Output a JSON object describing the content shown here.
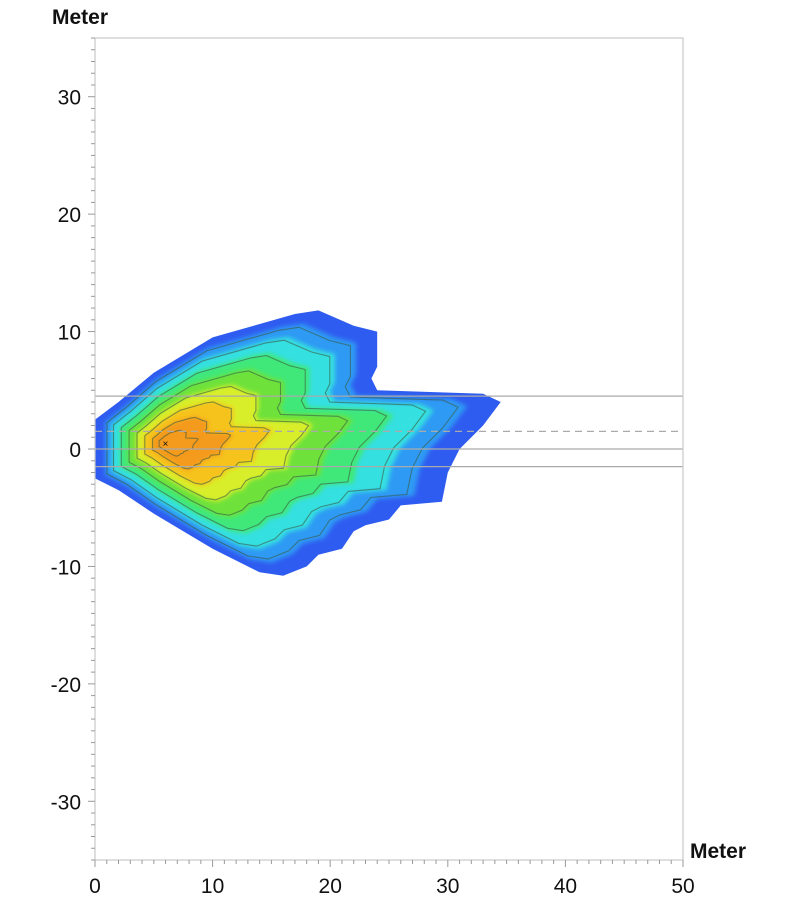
{
  "chart_data": {
    "type": "heatmap",
    "title": "",
    "xlabel": "Meter",
    "ylabel": "Meter",
    "xlim": [
      0,
      50
    ],
    "ylim": [
      -35,
      35
    ],
    "xticks": [
      0,
      10,
      20,
      30,
      40,
      50
    ],
    "yticks": [
      30,
      20,
      10,
      0,
      -10,
      -20,
      -30
    ],
    "grid": false,
    "colormap": [
      "#2f5cf0",
      "#2f9af4",
      "#35e0e0",
      "#3fe87a",
      "#6ee23a",
      "#d9ee2a",
      "#f6c21c",
      "#f49a1e"
    ],
    "peak": {
      "x": 6,
      "y": 0.5
    },
    "outer_boundary": [
      [
        0,
        2.5
      ],
      [
        2,
        4
      ],
      [
        5,
        6.5
      ],
      [
        10,
        9.5
      ],
      [
        17,
        11.5
      ],
      [
        19,
        11.8
      ],
      [
        22,
        10.5
      ],
      [
        24,
        10
      ],
      [
        24,
        7
      ],
      [
        23.5,
        6
      ],
      [
        24,
        5
      ],
      [
        33,
        4.7
      ],
      [
        34.5,
        4
      ],
      [
        33,
        2
      ],
      [
        31,
        0
      ],
      [
        30,
        -2
      ],
      [
        29.5,
        -4.5
      ],
      [
        26,
        -4.8
      ],
      [
        25,
        -6
      ],
      [
        23,
        -6.5
      ],
      [
        22,
        -7
      ],
      [
        21,
        -8.5
      ],
      [
        19,
        -9
      ],
      [
        18,
        -10
      ],
      [
        16,
        -10.8
      ],
      [
        14,
        -10.5
      ],
      [
        10,
        -8.5
      ],
      [
        5,
        -5.5
      ],
      [
        2,
        -3.5
      ],
      [
        0,
        -2.5
      ]
    ],
    "reference_lines": [
      {
        "y": 4.5,
        "style": "solid"
      },
      {
        "y": 1.5,
        "style": "dashed"
      },
      {
        "y": 0,
        "style": "solid"
      },
      {
        "y": -1.5,
        "style": "solid"
      }
    ]
  }
}
